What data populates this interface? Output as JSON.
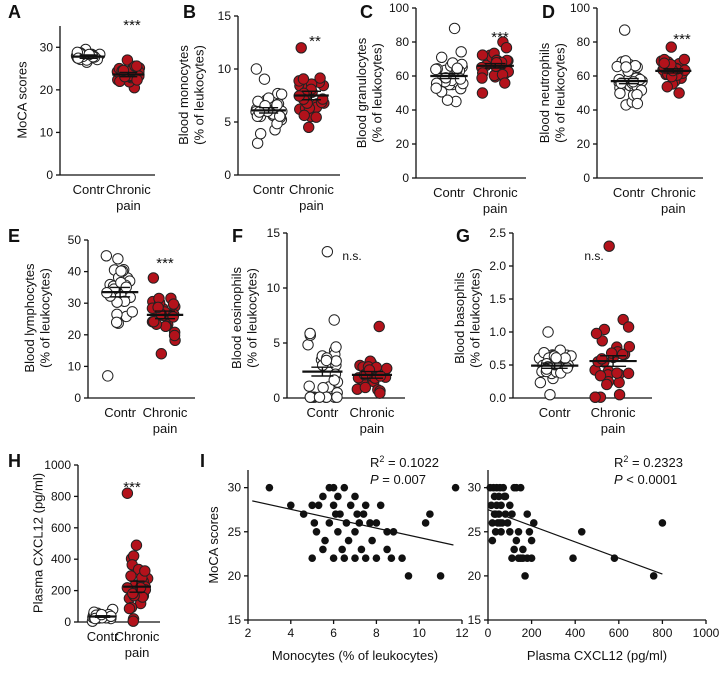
{
  "colors": {
    "ctrl_fill": "#ffffff",
    "pain_fill": "#b3121b",
    "scatter_fill": "#111111",
    "stroke": "#222222"
  },
  "chart_data": [
    {
      "id": "A",
      "type": "scatter",
      "panel_label": "A",
      "ylabel": [
        "MoCA scores"
      ],
      "ylim": [
        0,
        35
      ],
      "yticks": [
        0,
        10,
        20,
        30
      ],
      "tick_labels": [
        "0",
        "10",
        "20",
        "30"
      ],
      "groups": [
        {
          "label": [
            "Contr"
          ],
          "mean": 27.8,
          "sem": 0.4
        },
        {
          "label": [
            "Chronic",
            "pain"
          ],
          "mean": 23.6,
          "sem": 0.5
        }
      ],
      "significance": "***"
    },
    {
      "id": "B",
      "type": "scatter",
      "panel_label": "B",
      "ylabel": [
        "Blood monocytes",
        "(% of leukocytes)"
      ],
      "ylim": [
        0,
        15
      ],
      "yticks": [
        0,
        5,
        10,
        15
      ],
      "tick_labels": [
        "0",
        "5",
        "10",
        "15"
      ],
      "groups": [
        {
          "label": [
            "Contr"
          ],
          "mean": 6.1,
          "sem": 0.25
        },
        {
          "label": [
            "Chronic",
            "pain"
          ],
          "mean": 7.5,
          "sem": 0.4
        }
      ],
      "significance": "**"
    },
    {
      "id": "C",
      "type": "scatter",
      "panel_label": "C",
      "ylabel": [
        "Blood granulocytes",
        "(% of leukocytes)"
      ],
      "ylim": [
        0,
        100
      ],
      "yticks": [
        0,
        20,
        40,
        60,
        80,
        100
      ],
      "tick_labels": [
        "0",
        "20",
        "40",
        "60",
        "80",
        "100"
      ],
      "groups": [
        {
          "label": [
            "Contr"
          ],
          "mean": 60,
          "sem": 1.5
        },
        {
          "label": [
            "Chronic",
            "pain"
          ],
          "mean": 66,
          "sem": 1.3
        }
      ],
      "significance": "***"
    },
    {
      "id": "D",
      "type": "scatter",
      "panel_label": "D",
      "ylabel": [
        "Blood neutrophils",
        "(% of leukocytes)"
      ],
      "ylim": [
        0,
        100
      ],
      "yticks": [
        0,
        20,
        40,
        60,
        80,
        100
      ],
      "tick_labels": [
        "0",
        "20",
        "40",
        "60",
        "80",
        "100"
      ],
      "groups": [
        {
          "label": [
            "Contr"
          ],
          "mean": 57,
          "sem": 1.5
        },
        {
          "label": [
            "Chronic",
            "pain"
          ],
          "mean": 63,
          "sem": 1.2
        }
      ],
      "significance": "***"
    },
    {
      "id": "E",
      "type": "scatter",
      "panel_label": "E",
      "ylabel": [
        "Blood lymphocytes",
        "(% of leukocytes)"
      ],
      "ylim": [
        0,
        50
      ],
      "yticks": [
        0,
        10,
        20,
        30,
        40,
        50
      ],
      "tick_labels": [
        "0",
        "10",
        "20",
        "30",
        "40",
        "50"
      ],
      "groups": [
        {
          "label": [
            "Contr"
          ],
          "mean": 33.5,
          "sem": 1.5
        },
        {
          "label": [
            "Chronic",
            "pain"
          ],
          "mean": 26.3,
          "sem": 1.2
        }
      ],
      "significance": "***"
    },
    {
      "id": "F",
      "type": "scatter",
      "panel_label": "F",
      "ylabel": [
        "Blood eosinophils",
        "(% of leukocytes)"
      ],
      "ylim": [
        0,
        15
      ],
      "yticks": [
        0,
        5,
        10,
        15
      ],
      "tick_labels": [
        "0",
        "5",
        "10",
        "15"
      ],
      "groups": [
        {
          "label": [
            "Contr"
          ],
          "mean": 2.4,
          "sem": 0.4
        },
        {
          "label": [
            "Chronic",
            "pain"
          ],
          "mean": 2.1,
          "sem": 0.3
        }
      ],
      "significance": "n.s."
    },
    {
      "id": "G",
      "type": "scatter",
      "panel_label": "G",
      "ylabel": [
        "Blood basophils",
        "(% of leukocytes)"
      ],
      "ylim": [
        0,
        2.5
      ],
      "yticks": [
        0,
        0.5,
        1,
        1.5,
        2,
        2.5
      ],
      "tick_labels": [
        "0.0",
        "0.5",
        "1.0",
        "1.5",
        "2.0",
        "2.5"
      ],
      "groups": [
        {
          "label": [
            "Contr"
          ],
          "mean": 0.49,
          "sem": 0.04
        },
        {
          "label": [
            "Chronic",
            "pain"
          ],
          "mean": 0.56,
          "sem": 0.08
        }
      ],
      "significance": "n.s."
    },
    {
      "id": "H",
      "type": "scatter",
      "panel_label": "H",
      "ylabel": [
        "Plasma CXCL12 (pg/ml)"
      ],
      "ylim": [
        0,
        1000
      ],
      "yticks": [
        0,
        200,
        400,
        600,
        800,
        1000
      ],
      "tick_labels": [
        "0",
        "200",
        "400",
        "600",
        "800",
        "1000"
      ],
      "groups": [
        {
          "label": [
            "Contr"
          ],
          "mean": 35,
          "sem": 5
        },
        {
          "label": [
            "Chronic",
            "pain"
          ],
          "mean": 225,
          "sem": 35
        }
      ],
      "significance": "***"
    },
    {
      "id": "I1",
      "type": "scatter",
      "panel_label": "I",
      "ylabel": [
        "MoCA scores"
      ],
      "xlabel": "Monocytes (% of leukocytes)",
      "xlim": [
        2,
        12
      ],
      "xticks": [
        2,
        4,
        6,
        8,
        10,
        12
      ],
      "xtick_labels": [
        "2",
        "4",
        "6",
        "8",
        "10",
        "12"
      ],
      "ylim": [
        15,
        32
      ],
      "yticks": [
        15,
        20,
        25,
        30
      ],
      "tick_labels": [
        "15",
        "20",
        "25",
        "30"
      ],
      "stats": {
        "r2_label": "R",
        "r2_exp": "2",
        "r2_value": " = 0.1022",
        "p_label": "P",
        "p_value": " = 0.007"
      },
      "fit": {
        "x": [
          2.2,
          11.6
        ],
        "y": [
          28.5,
          23.5
        ]
      },
      "points": [
        [
          3,
          30
        ],
        [
          4,
          28
        ],
        [
          4.6,
          27
        ],
        [
          5,
          28
        ],
        [
          5,
          22
        ],
        [
          5.1,
          26
        ],
        [
          5.2,
          25
        ],
        [
          5.3,
          28
        ],
        [
          5.5,
          29
        ],
        [
          5.5,
          23
        ],
        [
          5.8,
          30
        ],
        [
          5.8,
          26
        ],
        [
          6,
          30
        ],
        [
          6,
          22
        ],
        [
          6,
          28
        ],
        [
          6.2,
          29
        ],
        [
          6.2,
          25
        ],
        [
          6.3,
          27
        ],
        [
          6.5,
          30
        ],
        [
          6.5,
          22
        ],
        [
          6.6,
          26
        ],
        [
          6.7,
          24
        ],
        [
          6.8,
          28
        ],
        [
          7,
          25
        ],
        [
          7,
          22
        ],
        [
          7,
          29
        ],
        [
          7.2,
          26
        ],
        [
          7.3,
          23
        ],
        [
          7.5,
          28
        ],
        [
          7.5,
          22
        ],
        [
          7.7,
          26
        ],
        [
          7.8,
          24
        ],
        [
          8,
          26
        ],
        [
          8,
          22
        ],
        [
          8.2,
          28
        ],
        [
          8.5,
          25
        ],
        [
          8.5,
          23
        ],
        [
          8.7,
          22
        ],
        [
          9.2,
          22
        ],
        [
          9.5,
          20
        ],
        [
          10.3,
          26
        ],
        [
          10.5,
          27
        ],
        [
          11,
          20
        ],
        [
          11.7,
          30
        ],
        [
          6.1,
          27
        ],
        [
          6.4,
          23
        ],
        [
          7.1,
          27
        ],
        [
          5.6,
          24
        ],
        [
          8.8,
          25
        ],
        [
          7.4,
          27
        ]
      ]
    },
    {
      "id": "I2",
      "type": "scatter",
      "panel_label": "",
      "ylabel": [
        ""
      ],
      "xlabel": "Plasma CXCL12 (pg/ml)",
      "xlim": [
        0,
        1000
      ],
      "xticks": [
        0,
        200,
        400,
        600,
        800,
        1000
      ],
      "xtick_labels": [
        "0",
        "200",
        "400",
        "600",
        "800",
        "1000"
      ],
      "ylim": [
        15,
        32
      ],
      "yticks": [
        15,
        20,
        25,
        30
      ],
      "tick_labels": [
        "15",
        "20",
        "25",
        "30"
      ],
      "stats": {
        "r2_label": "R",
        "r2_exp": "2",
        "r2_value": " = 0.2323",
        "p_label": "P",
        "p_value": " < 0.0001"
      },
      "fit": {
        "x": [
          0,
          800
        ],
        "y": [
          27.5,
          20.2
        ]
      },
      "points": [
        [
          10,
          30
        ],
        [
          15,
          28
        ],
        [
          20,
          26
        ],
        [
          25,
          30
        ],
        [
          30,
          29
        ],
        [
          30,
          27
        ],
        [
          35,
          25
        ],
        [
          40,
          30
        ],
        [
          40,
          28
        ],
        [
          45,
          26
        ],
        [
          50,
          29
        ],
        [
          50,
          27
        ],
        [
          55,
          30
        ],
        [
          60,
          25
        ],
        [
          60,
          28
        ],
        [
          65,
          26
        ],
        [
          70,
          30
        ],
        [
          75,
          29
        ],
        [
          80,
          27
        ],
        [
          90,
          26
        ],
        [
          100,
          28
        ],
        [
          100,
          25
        ],
        [
          110,
          22
        ],
        [
          120,
          30
        ],
        [
          120,
          23
        ],
        [
          130,
          24
        ],
        [
          140,
          25
        ],
        [
          150,
          22
        ],
        [
          150,
          30
        ],
        [
          160,
          23
        ],
        [
          170,
          20
        ],
        [
          180,
          22
        ],
        [
          180,
          27
        ],
        [
          190,
          25
        ],
        [
          200,
          22
        ],
        [
          200,
          24
        ],
        [
          210,
          26
        ],
        [
          140,
          22
        ],
        [
          160,
          22
        ],
        [
          390,
          22
        ],
        [
          430,
          25
        ],
        [
          580,
          22
        ],
        [
          760,
          20
        ],
        [
          800,
          26
        ],
        [
          20,
          24
        ],
        [
          35,
          27
        ],
        [
          55,
          26
        ],
        [
          80,
          29
        ],
        [
          110,
          27
        ],
        [
          130,
          30
        ]
      ]
    }
  ]
}
